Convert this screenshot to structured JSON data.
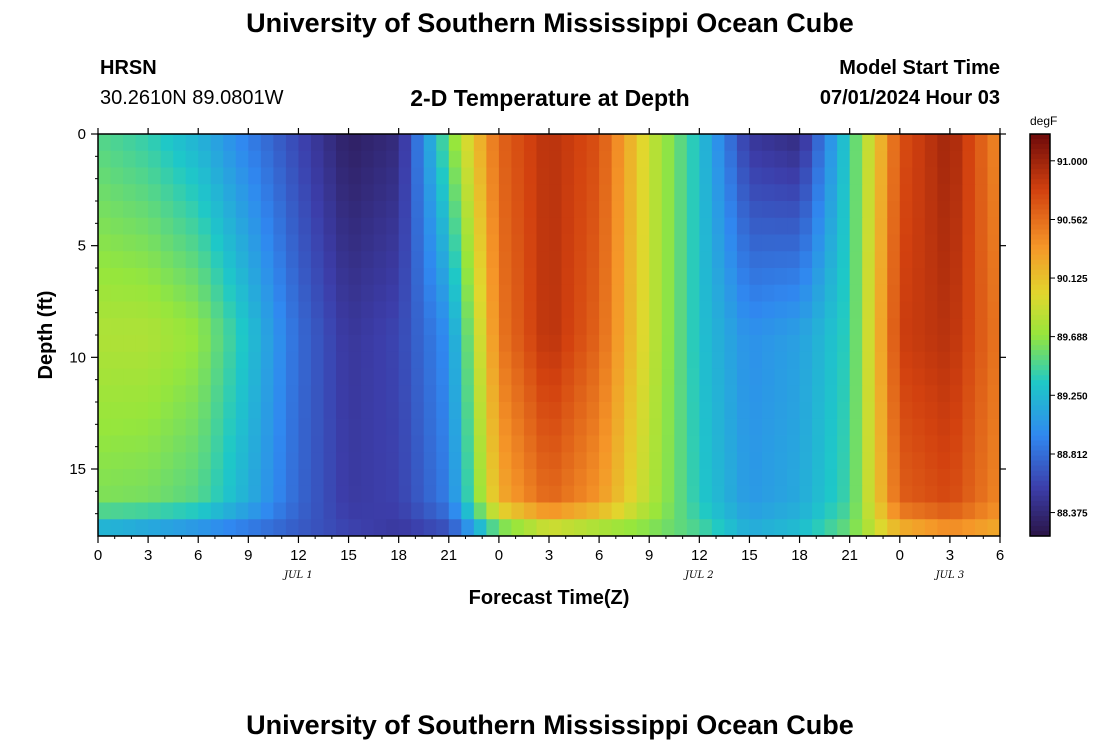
{
  "header": {
    "title": "University of Southern Mississippi Ocean Cube",
    "station": "HRSN",
    "coords": "30.2610N  89.0801W",
    "plot_title": "2-D Temperature at Depth",
    "model_label": "Model Start Time",
    "model_time": "07/01/2024 Hour 03"
  },
  "footer": {
    "title": "University of Southern Mississippi Ocean Cube"
  },
  "colors": {
    "cold": "#2a1446",
    "hot": "#6e0a0a"
  },
  "chart_data": {
    "type": "heatmap",
    "xlabel": "Forecast Time(Z)",
    "ylabel": "Depth (ft)",
    "x_range_hours": [
      0,
      54
    ],
    "x_tick_labels": [
      "0",
      "3",
      "6",
      "9",
      "12",
      "15",
      "18",
      "21",
      "0",
      "3",
      "6",
      "9",
      "12",
      "15",
      "18",
      "21",
      "0",
      "3",
      "6"
    ],
    "date_labels": [
      {
        "label": "JUL 1",
        "hour": 12
      },
      {
        "label": "JUL 2",
        "hour": 36
      },
      {
        "label": "JUL 3",
        "hour": 51
      }
    ],
    "y_range_ft": [
      0,
      18
    ],
    "y_ticks": [
      0,
      5,
      10,
      15
    ],
    "colorbar": {
      "unit": "degF",
      "min": 88.2,
      "max": 91.2,
      "tick_labels": [
        "91.000",
        "90.562",
        "90.125",
        "89.688",
        "89.250",
        "88.812",
        "88.375"
      ]
    },
    "field_description_hours": [
      0,
      3,
      6,
      9,
      12,
      15,
      18,
      21,
      24,
      27,
      30,
      33,
      36,
      39,
      42,
      45,
      48,
      51,
      54
    ],
    "surface_temp_degF": [
      89.5,
      89.4,
      89.2,
      88.9,
      88.6,
      88.3,
      88.4,
      89.6,
      90.6,
      90.9,
      90.7,
      89.9,
      89.3,
      88.5,
      88.4,
      89.4,
      90.7,
      91.0,
      90.4
    ],
    "mid_depth_temp_degF": [
      89.8,
      89.8,
      89.7,
      89.3,
      88.8,
      88.5,
      88.6,
      89.0,
      90.5,
      90.9,
      90.6,
      89.9,
      89.3,
      89.0,
      89.1,
      89.4,
      90.8,
      90.9,
      90.5
    ],
    "bottom_temp_degF": [
      89.1,
      89.0,
      88.9,
      88.8,
      88.7,
      88.6,
      88.5,
      88.6,
      89.4,
      89.7,
      89.6,
      89.6,
      89.5,
      89.2,
      89.3,
      89.6,
      90.1,
      90.3,
      90.2
    ]
  }
}
